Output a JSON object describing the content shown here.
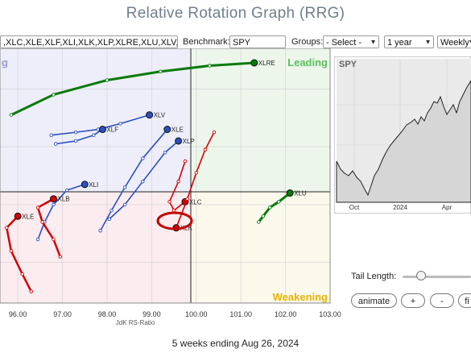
{
  "title": "Relative Rotation Graph (RRG)",
  "symbols_value": ",XLC,XLE,XLF,XLI,XLK,XLP,XLRE,XLU,XLV,XL",
  "benchmark": {
    "label": "Benchmark:",
    "value": "SPY"
  },
  "groups": {
    "label": "Groups:",
    "value": "- Select -"
  },
  "period": {
    "value": "1 year"
  },
  "frequency": {
    "value": "Weekly"
  },
  "quadrants": {
    "leading": "Leading",
    "lagging": "g",
    "weakening": "Weakening"
  },
  "inset": {
    "ticker": "SPY",
    "x_ticks": [
      "Oct",
      "2024",
      "Apr"
    ]
  },
  "tail_length": {
    "label": "Tail Length:",
    "value": 0.08
  },
  "buttons": {
    "animate": "animate",
    "plus": "+",
    "minus": "-",
    "fit": "fi"
  },
  "footer": "5 weeks ending Aug 26, 2024",
  "colors": {
    "green": "#0a7a0a",
    "blue": "#2b4fbf",
    "red": "#d40000",
    "leading_label": "#5cc05c",
    "weakening_label": "#e8b400",
    "highlight": "#c00000"
  },
  "chart_data": {
    "type": "scatter",
    "xlabel": "JdK RS-Ratio",
    "xlim": [
      95.6,
      103.0
    ],
    "ylim": [
      98.3,
      102.7
    ],
    "center": [
      100,
      100
    ],
    "x_ticks": [
      "96.00",
      "97.00",
      "98.00",
      "99.00",
      "100.00",
      "101.00",
      "102.00",
      "103.00"
    ],
    "highlighted": "XLK",
    "series": [
      {
        "name": "XLRE",
        "color": "#0a7a0a",
        "points": [
          [
            95.85,
            101.55
          ],
          [
            96.8,
            101.9
          ],
          [
            98.0,
            102.15
          ],
          [
            99.2,
            102.3
          ],
          [
            100.3,
            102.4
          ],
          [
            101.3,
            102.45
          ]
        ]
      },
      {
        "name": "XLU",
        "color": "#0a7a0a",
        "points": [
          [
            101.4,
            99.7
          ],
          [
            101.5,
            99.8
          ],
          [
            101.65,
            99.95
          ],
          [
            101.85,
            100.05
          ],
          [
            102.1,
            100.2
          ]
        ]
      },
      {
        "name": "XLV",
        "color": "#2b4fbf",
        "points": [
          [
            96.75,
            101.2
          ],
          [
            97.3,
            101.25
          ],
          [
            97.8,
            101.3
          ],
          [
            98.3,
            101.4
          ],
          [
            98.95,
            101.55
          ]
        ]
      },
      {
        "name": "XLF",
        "color": "#2b4fbf",
        "points": [
          [
            96.85,
            101.05
          ],
          [
            97.3,
            101.1
          ],
          [
            97.7,
            101.2
          ],
          [
            97.9,
            101.3
          ]
        ]
      },
      {
        "name": "XLI",
        "color": "#2b4fbf",
        "points": [
          [
            96.45,
            99.4
          ],
          [
            96.6,
            99.7
          ],
          [
            96.8,
            100.0
          ],
          [
            97.1,
            100.25
          ],
          [
            97.5,
            100.35
          ]
        ]
      },
      {
        "name": "XLE",
        "color": "#2b4fbf",
        "points": [
          [
            97.85,
            99.55
          ],
          [
            98.1,
            99.9
          ],
          [
            98.4,
            100.3
          ],
          [
            98.8,
            100.8
          ],
          [
            99.35,
            101.3
          ]
        ]
      },
      {
        "name": "XLP",
        "color": "#2b4fbf",
        "points": [
          [
            98.05,
            99.75
          ],
          [
            98.4,
            100.0
          ],
          [
            98.8,
            100.4
          ],
          [
            99.3,
            100.9
          ],
          [
            99.6,
            101.1
          ]
        ]
      },
      {
        "name": "XLB",
        "color": "#d40000",
        "points": [
          [
            96.95,
            99.1
          ],
          [
            96.8,
            99.4
          ],
          [
            96.55,
            99.7
          ],
          [
            96.45,
            99.95
          ],
          [
            96.8,
            100.1
          ]
        ]
      },
      {
        "name": "XLE",
        "color": "#d40000",
        "points": [
          [
            96.3,
            98.5
          ],
          [
            96.1,
            98.8
          ],
          [
            95.85,
            99.2
          ],
          [
            95.75,
            99.6
          ],
          [
            96.0,
            99.8
          ]
        ]
      },
      {
        "name": "XLC",
        "color": "#d40000",
        "points": [
          [
            99.75,
            100.75
          ],
          [
            99.6,
            100.4
          ],
          [
            99.4,
            100.05
          ],
          [
            99.5,
            99.9
          ],
          [
            99.75,
            100.05
          ]
        ]
      },
      {
        "name": "XLK",
        "color": "#d40000",
        "points": [
          [
            100.4,
            101.25
          ],
          [
            100.2,
            100.95
          ],
          [
            100.0,
            100.55
          ],
          [
            99.8,
            100.1
          ],
          [
            99.55,
            99.6
          ]
        ]
      }
    ]
  }
}
